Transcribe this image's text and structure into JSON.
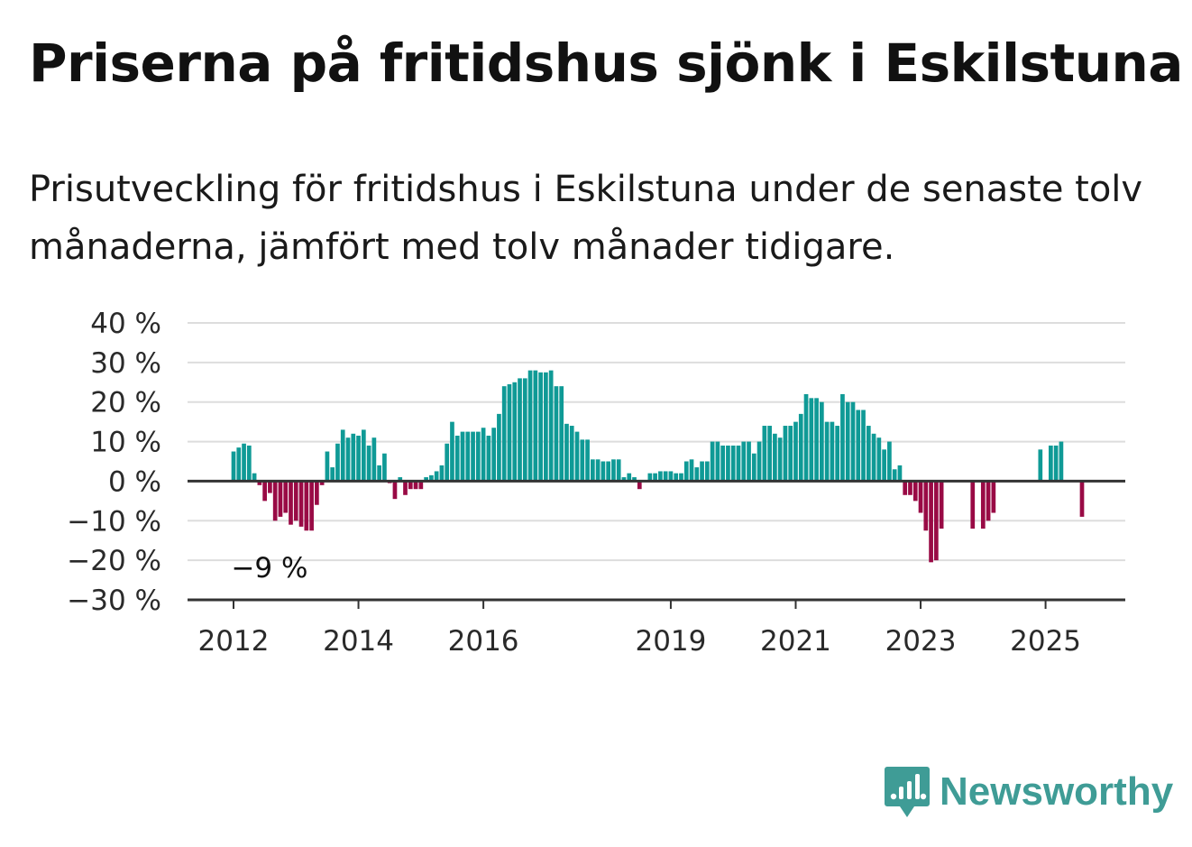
{
  "title": "Priserna på fritidshus sjönk i Eskilstuna",
  "subtitle": "Prisutveckling för fritidshus i Eskilstuna under de senaste tolv månaderna, jämfört med tolv månader tidigare.",
  "brand": {
    "name": "Newsworthy",
    "icon": "newsworthy-logo-icon"
  },
  "colors": {
    "positive": "#0f9a96",
    "negative": "#990a45",
    "grid": "#dddddd",
    "axis": "#333333"
  },
  "chart_data": {
    "type": "bar",
    "title": "",
    "xlabel": "",
    "ylabel": "",
    "unit": "%",
    "ylim": [
      -30,
      40
    ],
    "yticks": [
      "40 %",
      "30 %",
      "20 %",
      "10 %",
      "0 %",
      "−10 %",
      "−20 %",
      "−30 %"
    ],
    "ytick_values": [
      40,
      30,
      20,
      10,
      0,
      -10,
      -20,
      -30
    ],
    "xticks": [
      "2012",
      "2014",
      "2016",
      "2019",
      "2021",
      "2023",
      "2025"
    ],
    "xtick_index": [
      0,
      24,
      48,
      84,
      108,
      132,
      156
    ],
    "x_start": "2012-01",
    "x_end": "2025-12",
    "grid": true,
    "annotation": {
      "text": "−9 %",
      "value": -9,
      "date": "2025-07"
    },
    "values": [
      7.5,
      8.5,
      9.5,
      9,
      2,
      -1,
      -5,
      -3,
      -10,
      -9,
      -8,
      -11,
      -10,
      -11.5,
      -12.5,
      -12.5,
      -6,
      -1,
      7.5,
      3.5,
      9.5,
      13,
      11,
      12,
      11.5,
      13,
      9,
      11,
      4,
      7,
      -0.5,
      -4.5,
      1,
      -3.5,
      -2,
      -2,
      -2,
      1,
      1.5,
      2.5,
      4,
      9.5,
      15,
      11.5,
      12.5,
      12.5,
      12.5,
      12.5,
      13.5,
      11.5,
      13.5,
      17,
      24,
      24.5,
      25,
      26,
      26,
      28,
      28,
      27.5,
      27.5,
      28,
      24,
      24,
      14.5,
      14,
      12.5,
      10.5,
      10.5,
      5.5,
      5.5,
      5,
      5,
      5.5,
      5.5,
      1,
      2,
      1,
      -2,
      null,
      2,
      2,
      2.5,
      2.5,
      2.5,
      2,
      2,
      5,
      5.5,
      3.5,
      5,
      5,
      10,
      10,
      9,
      9,
      9,
      9,
      10,
      10,
      7,
      10,
      14,
      14,
      12,
      11,
      14,
      14,
      15,
      17,
      22,
      21,
      21,
      20,
      15,
      15,
      14,
      22,
      20,
      20,
      18,
      18,
      14,
      12,
      11,
      8,
      10,
      3,
      4,
      -3.5,
      -3.5,
      -5,
      -8,
      -12.5,
      -20.5,
      -20,
      -12,
      null,
      null,
      null,
      null,
      null,
      -12,
      null,
      -12,
      -10,
      -8,
      null,
      null,
      null,
      null,
      null,
      null,
      null,
      null,
      8,
      null,
      9,
      9,
      10,
      null,
      null,
      null,
      -9,
      null,
      null,
      null,
      null
    ]
  }
}
